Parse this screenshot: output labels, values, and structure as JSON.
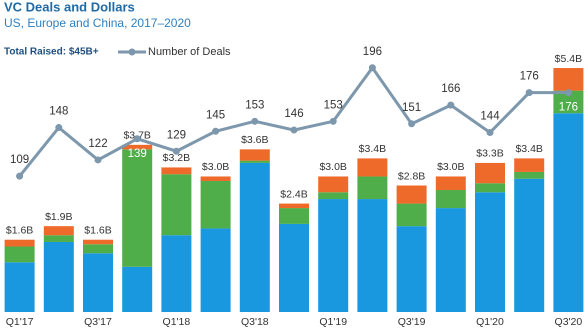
{
  "chart_data": {
    "type": "stacked-bar-line",
    "title": "VC Deals and Dollars",
    "subtitle": "US, Europe and China, 2017–2020",
    "annotation": "Total Raised: $45B+",
    "categories": [
      "Q1'17",
      null,
      "Q3'17",
      null,
      "Q1'18",
      null,
      "Q3'18",
      null,
      "Q1'19",
      null,
      "Q3'19",
      null,
      "Q1'20",
      null,
      "Q3'20"
    ],
    "ylim": [
      0,
      5.6
    ],
    "y2lim": [
      0,
      203
    ],
    "bar_series": [
      {
        "color": "#1a98df",
        "values": [
          1.1,
          1.55,
          1.3,
          1.0,
          1.7,
          1.85,
          3.3,
          1.95,
          2.5,
          2.5,
          1.9,
          2.3,
          2.65,
          2.95,
          4.4
        ]
      },
      {
        "color": "#4fae4a",
        "values": [
          0.35,
          0.15,
          0.2,
          2.6,
          1.35,
          1.05,
          0.05,
          0.35,
          0.15,
          0.5,
          0.5,
          0.4,
          0.2,
          0.15,
          0.5
        ]
      },
      {
        "color": "#ee6a2b",
        "values": [
          0.15,
          0.2,
          0.1,
          0.1,
          0.15,
          0.1,
          0.25,
          0.1,
          0.35,
          0.4,
          0.4,
          0.3,
          0.45,
          0.3,
          0.5
        ]
      }
    ],
    "bar_totals": {
      "values": [
        1.6,
        1.9,
        1.6,
        3.7,
        3.2,
        3.0,
        3.6,
        2.4,
        3.0,
        3.4,
        2.8,
        3.0,
        3.3,
        3.4,
        5.4
      ],
      "value_labels": [
        "$1.6B",
        "$1.9B",
        "$1.6B",
        "$3.7B",
        "$3.2B",
        "$3.0B",
        "$3.6B",
        "$2.4B",
        "$3.0B",
        "$3.4B",
        "$2.8B",
        "$3.0B",
        "$3.3B",
        "$3.4B",
        "$5.4B"
      ]
    },
    "series": [
      {
        "name": "Number of Deals",
        "color": "#7d97ac",
        "axis": "y2",
        "values": [
          109,
          148,
          122,
          139,
          129,
          145,
          153,
          146,
          153,
          196,
          151,
          166,
          144,
          176,
          176
        ]
      }
    ]
  }
}
